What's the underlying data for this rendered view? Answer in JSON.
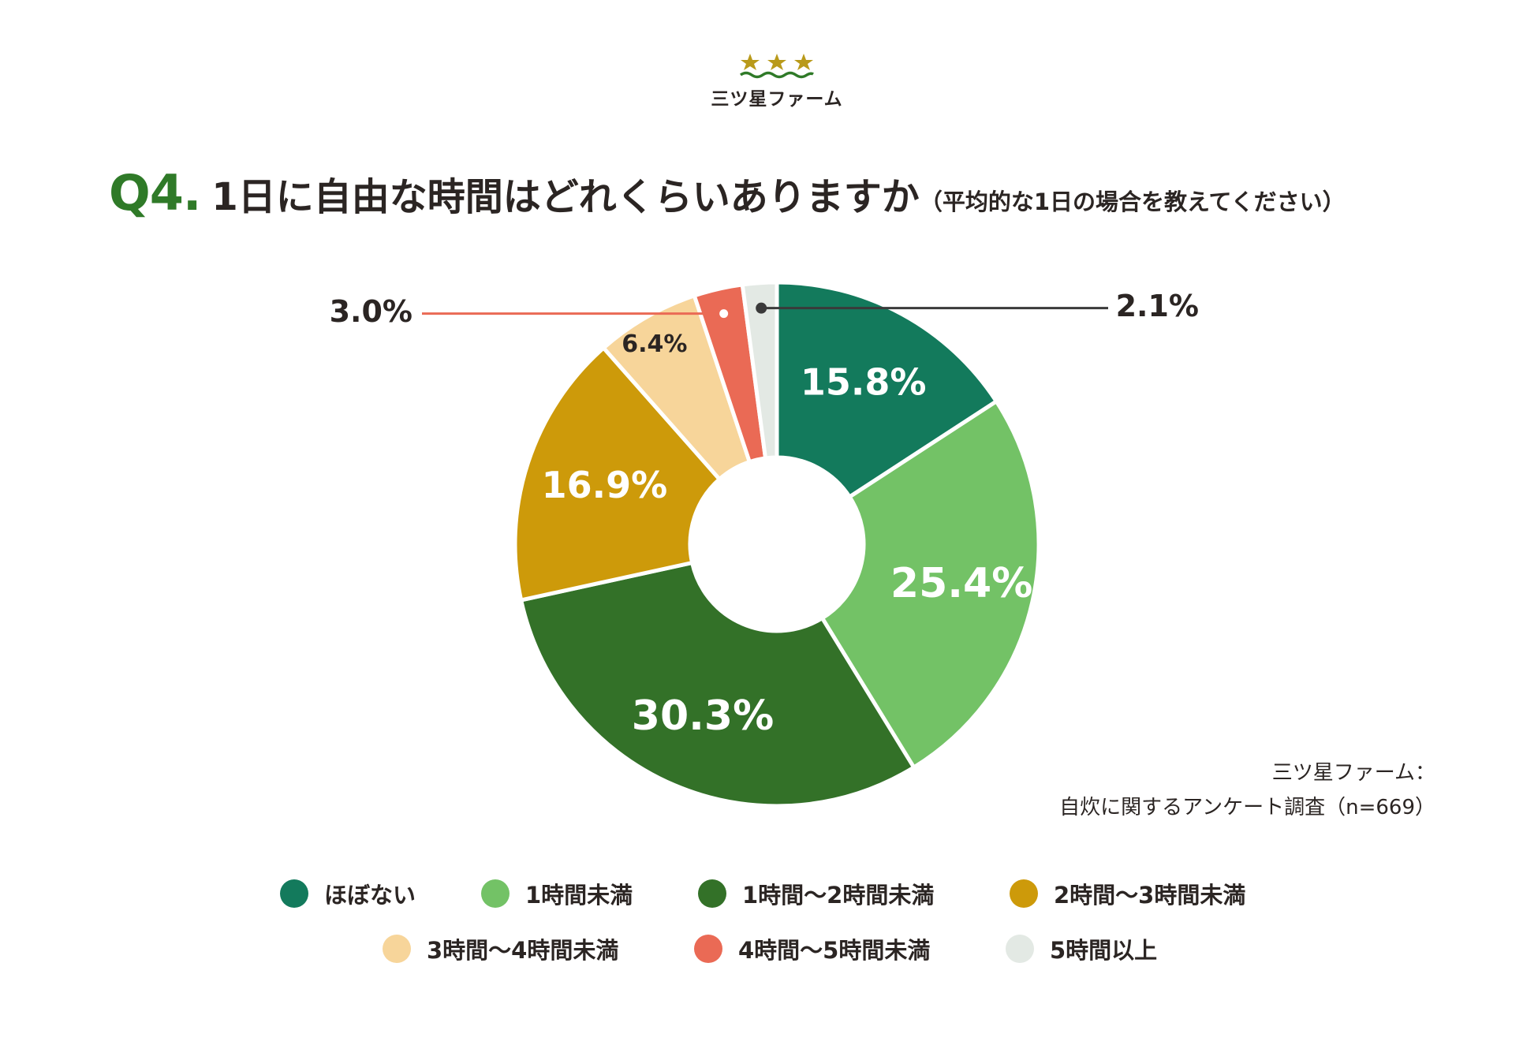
{
  "brand": {
    "name": "三ツ星ファーム",
    "star_color": "#b99a1a",
    "wave_color": "#2f7a28"
  },
  "question": {
    "number": "Q4.",
    "text": "1日に自由な時間はどれくらいありますか",
    "note": "（平均的な1日の場合を教えてください）"
  },
  "source": {
    "line1": "三ツ星ファーム：",
    "line2": "自炊に関するアンケート調査（n=669）"
  },
  "chart_data": {
    "type": "pie",
    "donut": true,
    "unit": "%",
    "categories": [
      "ほぼない",
      "1時間未満",
      "1時間〜2時間未満",
      "2時間〜3時間未満",
      "3時間〜4時間未満",
      "4時間〜5時間未満",
      "5時間以上"
    ],
    "values": [
      15.8,
      25.4,
      30.3,
      16.9,
      6.4,
      3.0,
      2.1
    ],
    "labels": [
      "15.8%",
      "25.4%",
      "30.3%",
      "16.9%",
      "6.4%",
      "3.0%",
      "2.1%"
    ],
    "colors": [
      "#137a5c",
      "#73c266",
      "#337128",
      "#cd9a0a",
      "#f7d59a",
      "#ea6a55",
      "#e3e9e4"
    ],
    "legend_placement": "bottom"
  }
}
